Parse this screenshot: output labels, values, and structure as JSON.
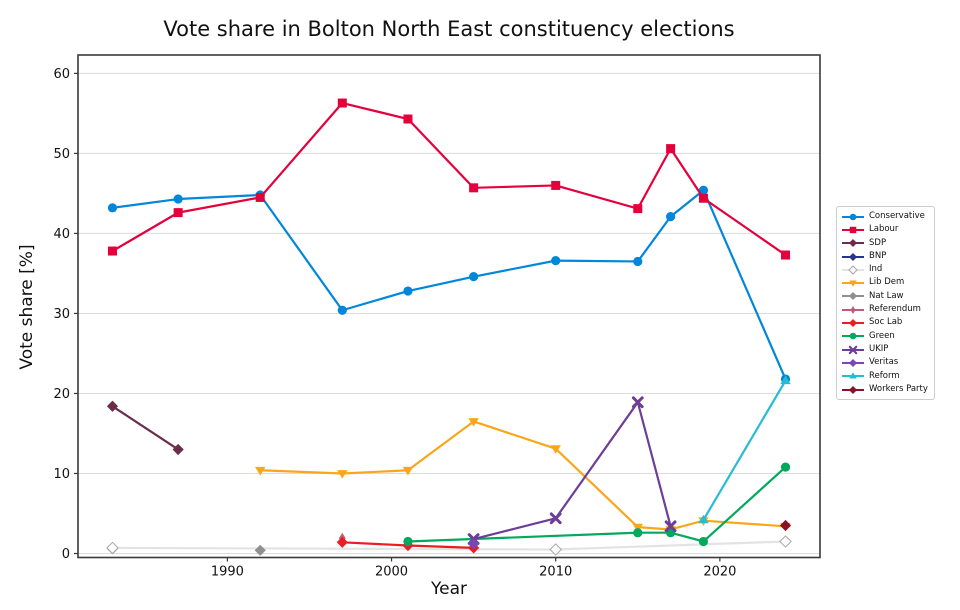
{
  "chart_data": {
    "type": "line",
    "title": "Vote share in Bolton North East constituency elections",
    "xlabel": "Year",
    "ylabel": "Vote share [%]",
    "x_ticks": [
      1990,
      2000,
      2010,
      2020
    ],
    "y_ticks": [
      0,
      10,
      20,
      30,
      40,
      50,
      60
    ],
    "xlim": [
      1980.9,
      2026.1
    ],
    "ylim": [
      -0.5,
      62.3
    ],
    "grid": "horizontal",
    "legend_position": "right-outside",
    "election_years": [
      1983,
      1987,
      1992,
      1997,
      2001,
      2005,
      2010,
      2015,
      2017,
      2019,
      2024
    ],
    "series": [
      {
        "name": "Conservative",
        "color": "#0087DC",
        "marker": "o",
        "points": [
          [
            1983,
            43.2
          ],
          [
            1987,
            44.3
          ],
          [
            1992,
            44.8
          ],
          [
            1997,
            30.4
          ],
          [
            2001,
            32.8
          ],
          [
            2005,
            34.6
          ],
          [
            2010,
            36.6
          ],
          [
            2015,
            36.5
          ],
          [
            2017,
            42.1
          ],
          [
            2019,
            45.4
          ],
          [
            2024,
            21.8
          ]
        ]
      },
      {
        "name": "Labour",
        "color": "#E4003B",
        "marker": "s",
        "points": [
          [
            1983,
            37.8
          ],
          [
            1987,
            42.6
          ],
          [
            1992,
            44.5
          ],
          [
            1997,
            56.3
          ],
          [
            2001,
            54.3
          ],
          [
            2005,
            45.7
          ],
          [
            2010,
            46.0
          ],
          [
            2015,
            43.1
          ],
          [
            2017,
            50.6
          ],
          [
            2019,
            44.4
          ],
          [
            2024,
            37.3
          ]
        ]
      },
      {
        "name": "SDP",
        "color": "#6B2D4A",
        "marker": "D",
        "points": [
          [
            1983,
            18.4
          ],
          [
            1987,
            13.0
          ]
        ]
      },
      {
        "name": "BNP",
        "color": "#27338F",
        "marker": "D",
        "points": [
          [
            1983,
            0.6
          ]
        ]
      },
      {
        "name": "Ind",
        "color": "#E3E3E3",
        "marker": "D",
        "marker_fill": "#FCFCFC",
        "marker_edge": "#A8A8A8",
        "points": [
          [
            1983,
            0.7
          ],
          [
            2010,
            0.5
          ],
          [
            2024,
            1.5
          ]
        ]
      },
      {
        "name": "Lib Dem",
        "color": "#FAA61A",
        "marker": "v",
        "points": [
          [
            1992,
            10.4
          ],
          [
            1997,
            10.0
          ],
          [
            2001,
            10.4
          ],
          [
            2005,
            16.5
          ],
          [
            2010,
            13.1
          ],
          [
            2015,
            3.3
          ],
          [
            2017,
            3.0
          ],
          [
            2019,
            4.1
          ],
          [
            2024,
            3.4
          ]
        ]
      },
      {
        "name": "Nat Law",
        "color": "#909090",
        "marker": "D",
        "points": [
          [
            1992,
            0.4
          ]
        ]
      },
      {
        "name": "Referendum",
        "color": "#C25B77",
        "marker": "d",
        "points": [
          [
            1997,
            1.9
          ]
        ]
      },
      {
        "name": "Soc Lab",
        "color": "#EA1C24",
        "marker": "D",
        "points": [
          [
            1997,
            1.4
          ],
          [
            2001,
            1.0
          ],
          [
            2005,
            0.7
          ]
        ]
      },
      {
        "name": "Green",
        "color": "#00A95C",
        "marker": "o",
        "points": [
          [
            2001,
            1.5
          ],
          [
            2015,
            2.6
          ],
          [
            2017,
            2.6
          ],
          [
            2019,
            1.5
          ],
          [
            2024,
            10.8
          ]
        ]
      },
      {
        "name": "UKIP",
        "color": "#6D3E98",
        "marker": "x",
        "points": [
          [
            2005,
            1.8
          ],
          [
            2010,
            4.4
          ],
          [
            2015,
            18.9
          ],
          [
            2017,
            3.4
          ]
        ]
      },
      {
        "name": "Veritas",
        "color": "#7A45B5",
        "marker": "D",
        "points": [
          [
            2005,
            1.2
          ]
        ]
      },
      {
        "name": "Reform",
        "color": "#27BCD4",
        "marker": "^",
        "points": [
          [
            2019,
            4.2
          ],
          [
            2024,
            21.6
          ]
        ]
      },
      {
        "name": "Workers Party",
        "color": "#8B1126",
        "marker": "D",
        "points": [
          [
            2024,
            3.5
          ]
        ]
      }
    ]
  }
}
